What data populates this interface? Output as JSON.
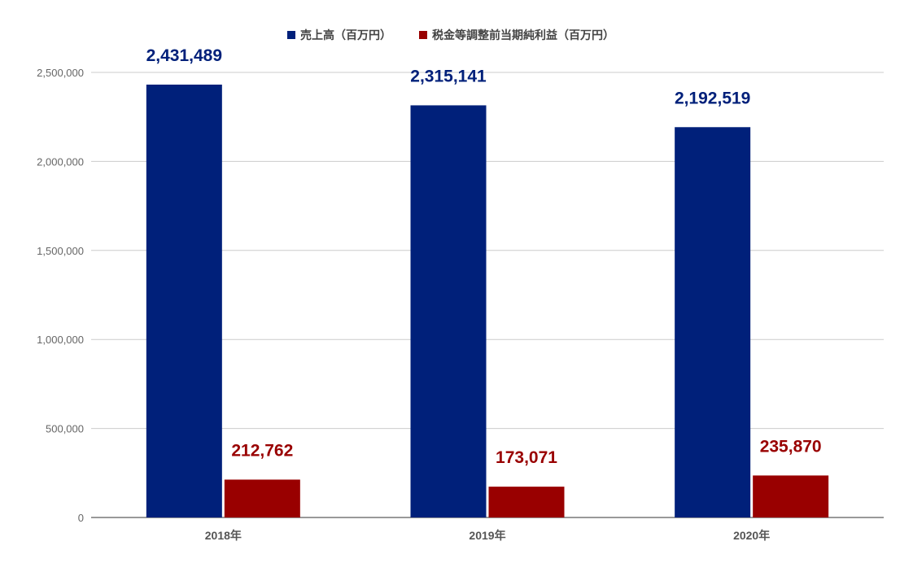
{
  "chart_data": {
    "type": "bar",
    "categories": [
      "2018年",
      "2019年",
      "2020年"
    ],
    "series": [
      {
        "name": "売上高（百万円）",
        "color": "#00207a",
        "values": [
          2431489,
          2315141,
          2192519
        ],
        "labels": [
          "2,431,489",
          "2,315,141",
          "2,192,519"
        ]
      },
      {
        "name": "税金等調整前当期純利益（百万円）",
        "color": "#990000",
        "values": [
          212762,
          173071,
          235870
        ],
        "labels": [
          "212,762",
          "173,071",
          "235,870"
        ]
      }
    ],
    "yticks": [
      0,
      500000,
      1000000,
      1500000,
      2000000,
      2500000
    ],
    "ytick_labels": [
      "0",
      "500,000",
      "1,000,000",
      "1,500,000",
      "2,000,000",
      "2,500,000"
    ],
    "ylim": [
      0,
      2500000
    ],
    "grid": true,
    "legend_position": "top-center"
  }
}
